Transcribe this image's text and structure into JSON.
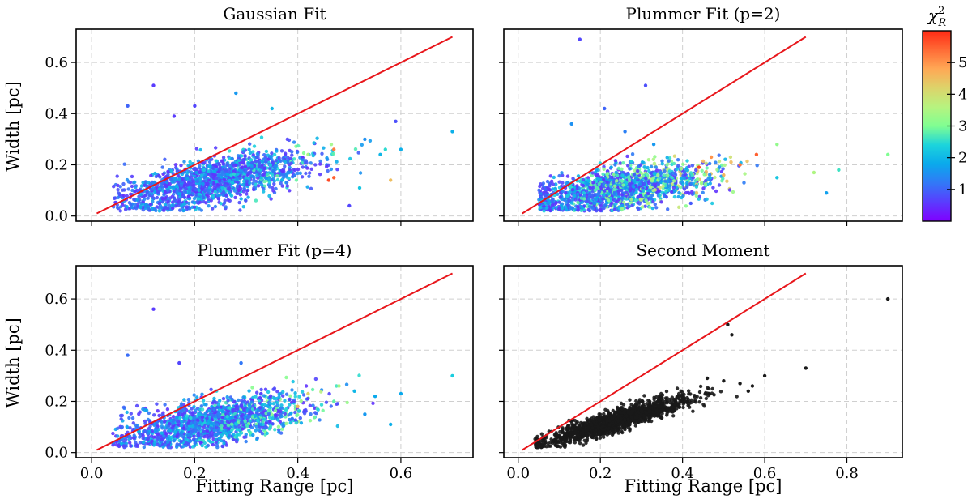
{
  "chart_data": [
    {
      "id": "gaussian",
      "type": "scatter",
      "title": "Gaussian Fit",
      "xlabel": "",
      "ylabel": "Width [pc]",
      "xlim": [
        -0.03,
        0.74
      ],
      "ylim": [
        -0.02,
        0.73
      ],
      "xticks": [
        0.0,
        0.2,
        0.4,
        0.6
      ],
      "xtick_labels": [],
      "yticks": [
        0.0,
        0.2,
        0.4,
        0.6
      ],
      "ytick_labels": [
        "0.0",
        "0.2",
        "0.4",
        "0.6"
      ],
      "grid": true,
      "color_mode": "chi2",
      "reference_line": {
        "x": [
          0.01,
          0.7
        ],
        "y": [
          0.01,
          0.7
        ],
        "color": "#e8161b"
      },
      "cloud": {
        "n": 1500,
        "seed": 11,
        "x_mean": 0.24,
        "x_sd": 0.09,
        "x_min": 0.04,
        "x_max": 0.55,
        "slope": 0.42,
        "intercept": 0.035,
        "y_sd": 0.045,
        "y_min": 0.02,
        "chi_base": 0.5,
        "chi_scale": 2.0
      },
      "outliers": [
        {
          "x": 0.12,
          "y": 0.51,
          "chi2": 0.6
        },
        {
          "x": 0.07,
          "y": 0.43,
          "chi2": 1.0
        },
        {
          "x": 0.2,
          "y": 0.43,
          "chi2": 0.7
        },
        {
          "x": 0.16,
          "y": 0.39,
          "chi2": 0.6
        },
        {
          "x": 0.28,
          "y": 0.48,
          "chi2": 1.6
        },
        {
          "x": 0.35,
          "y": 0.42,
          "chi2": 2.0
        },
        {
          "x": 0.59,
          "y": 0.37,
          "chi2": 0.8
        },
        {
          "x": 0.7,
          "y": 0.33,
          "chi2": 1.9
        },
        {
          "x": 0.53,
          "y": 0.3,
          "chi2": 1.5
        },
        {
          "x": 0.57,
          "y": 0.26,
          "chi2": 2.5
        },
        {
          "x": 0.58,
          "y": 0.14,
          "chi2": 4.5
        },
        {
          "x": 0.6,
          "y": 0.26,
          "chi2": 1.9
        },
        {
          "x": 0.5,
          "y": 0.04,
          "chi2": 0.7
        },
        {
          "x": 0.46,
          "y": 0.14,
          "chi2": 5.7
        },
        {
          "x": 0.47,
          "y": 0.26,
          "chi2": 5.2
        },
        {
          "x": 0.42,
          "y": 0.24,
          "chi2": 3.5
        },
        {
          "x": 0.52,
          "y": 0.11,
          "chi2": 2.2
        },
        {
          "x": 0.47,
          "y": 0.15,
          "chi2": 5.5
        },
        {
          "x": 0.56,
          "y": 0.24,
          "chi2": 2.0
        }
      ]
    },
    {
      "id": "plummer2",
      "type": "scatter",
      "title": "Plummer Fit (p=2)",
      "xlabel": "",
      "ylabel": "",
      "xlim": [
        -0.035,
        0.935
      ],
      "ylim": [
        -0.02,
        0.73
      ],
      "xticks": [
        0.0,
        0.2,
        0.4,
        0.6,
        0.8
      ],
      "xtick_labels": [],
      "yticks": [
        0.0,
        0.2,
        0.4,
        0.6
      ],
      "ytick_labels": [],
      "grid": true,
      "color_mode": "chi2",
      "reference_line": {
        "x": [
          0.01,
          0.7
        ],
        "y": [
          0.01,
          0.7
        ],
        "color": "#e8161b"
      },
      "cloud": {
        "n": 1500,
        "seed": 23,
        "x_mean": 0.25,
        "x_sd": 0.11,
        "x_min": 0.05,
        "x_max": 0.68,
        "slope": 0.22,
        "intercept": 0.05,
        "y_sd": 0.04,
        "y_min": 0.02,
        "chi_base": 0.5,
        "chi_scale": 3.0
      },
      "outliers": [
        {
          "x": 0.15,
          "y": 0.69,
          "chi2": 0.7
        },
        {
          "x": 0.31,
          "y": 0.51,
          "chi2": 0.8
        },
        {
          "x": 0.21,
          "y": 0.42,
          "chi2": 1.0
        },
        {
          "x": 0.13,
          "y": 0.36,
          "chi2": 1.5
        },
        {
          "x": 0.26,
          "y": 0.33,
          "chi2": 1.3
        },
        {
          "x": 0.33,
          "y": 0.28,
          "chi2": 1.6
        },
        {
          "x": 0.9,
          "y": 0.24,
          "chi2": 3.0
        },
        {
          "x": 0.78,
          "y": 0.18,
          "chi2": 2.6
        },
        {
          "x": 0.75,
          "y": 0.09,
          "chi2": 1.7
        },
        {
          "x": 0.63,
          "y": 0.15,
          "chi2": 2.2
        },
        {
          "x": 0.63,
          "y": 0.28,
          "chi2": 3.2
        },
        {
          "x": 0.72,
          "y": 0.17,
          "chi2": 3.5
        },
        {
          "x": 0.47,
          "y": 0.23,
          "chi2": 5.0
        },
        {
          "x": 0.54,
          "y": 0.2,
          "chi2": 5.3
        },
        {
          "x": 0.58,
          "y": 0.24,
          "chi2": 5.5
        },
        {
          "x": 0.42,
          "y": 0.05,
          "chi2": 0.9
        },
        {
          "x": 0.5,
          "y": 0.16,
          "chi2": 4.6
        },
        {
          "x": 0.44,
          "y": 0.19,
          "chi2": 5.8
        }
      ]
    },
    {
      "id": "plummer4",
      "type": "scatter",
      "title": "Plummer Fit (p=4)",
      "xlabel": "Fitting Range [pc]",
      "ylabel": "Width [pc]",
      "xlim": [
        -0.03,
        0.74
      ],
      "ylim": [
        -0.02,
        0.73
      ],
      "xticks": [
        0.0,
        0.2,
        0.4,
        0.6
      ],
      "xtick_labels": [
        "0.0",
        "0.2",
        "0.4",
        "0.6"
      ],
      "yticks": [
        0.0,
        0.2,
        0.4,
        0.6
      ],
      "ytick_labels": [
        "0.0",
        "0.2",
        "0.4",
        "0.6"
      ],
      "grid": true,
      "color_mode": "chi2",
      "reference_line": {
        "x": [
          0.01,
          0.7
        ],
        "y": [
          0.01,
          0.7
        ],
        "color": "#e8161b"
      },
      "cloud": {
        "n": 1500,
        "seed": 37,
        "x_mean": 0.24,
        "x_sd": 0.09,
        "x_min": 0.04,
        "x_max": 0.55,
        "slope": 0.35,
        "intercept": 0.035,
        "y_sd": 0.045,
        "y_min": 0.02,
        "chi_base": 0.5,
        "chi_scale": 2.3
      },
      "outliers": [
        {
          "x": 0.12,
          "y": 0.56,
          "chi2": 0.6
        },
        {
          "x": 0.07,
          "y": 0.38,
          "chi2": 1.1
        },
        {
          "x": 0.17,
          "y": 0.35,
          "chi2": 0.7
        },
        {
          "x": 0.29,
          "y": 0.35,
          "chi2": 1.2
        },
        {
          "x": 0.7,
          "y": 0.3,
          "chi2": 2.3
        },
        {
          "x": 0.58,
          "y": 0.11,
          "chi2": 1.9
        },
        {
          "x": 0.55,
          "y": 0.22,
          "chi2": 1.8
        },
        {
          "x": 0.48,
          "y": 0.26,
          "chi2": 3.4
        },
        {
          "x": 0.51,
          "y": 0.24,
          "chi2": 2.0
        },
        {
          "x": 0.47,
          "y": 0.2,
          "chi2": 2.8
        },
        {
          "x": 0.6,
          "y": 0.23,
          "chi2": 1.8
        },
        {
          "x": 0.42,
          "y": 0.23,
          "chi2": 4.2
        },
        {
          "x": 0.4,
          "y": 0.18,
          "chi2": 4.6
        },
        {
          "x": 0.53,
          "y": 0.15,
          "chi2": 1.6
        }
      ]
    },
    {
      "id": "moment",
      "type": "scatter",
      "title": "Second Moment",
      "xlabel": "Fitting Range [pc]",
      "ylabel": "",
      "xlim": [
        -0.035,
        0.935
      ],
      "ylim": [
        -0.02,
        0.73
      ],
      "xticks": [
        0.0,
        0.2,
        0.4,
        0.6,
        0.8
      ],
      "xtick_labels": [
        "0.0",
        "0.2",
        "0.4",
        "0.6",
        "0.8"
      ],
      "yticks": [
        0.0,
        0.2,
        0.4,
        0.6
      ],
      "ytick_labels": [],
      "grid": true,
      "color_mode": "black",
      "point_color": "#1a1a1a",
      "reference_line": {
        "x": [
          0.01,
          0.7
        ],
        "y": [
          0.01,
          0.7
        ],
        "color": "#e8161b"
      },
      "cloud": {
        "n": 1500,
        "seed": 53,
        "x_mean": 0.24,
        "x_sd": 0.09,
        "x_min": 0.04,
        "x_max": 0.55,
        "slope": 0.48,
        "intercept": 0.01,
        "y_sd": 0.02,
        "y_min": 0.02,
        "chi_base": 0,
        "chi_scale": 0
      },
      "outliers": [
        {
          "x": 0.9,
          "y": 0.6
        },
        {
          "x": 0.7,
          "y": 0.33
        },
        {
          "x": 0.6,
          "y": 0.3
        },
        {
          "x": 0.51,
          "y": 0.5
        },
        {
          "x": 0.52,
          "y": 0.46
        },
        {
          "x": 0.57,
          "y": 0.26
        },
        {
          "x": 0.54,
          "y": 0.27
        },
        {
          "x": 0.56,
          "y": 0.24
        },
        {
          "x": 0.5,
          "y": 0.28
        },
        {
          "x": 0.46,
          "y": 0.29
        }
      ]
    }
  ],
  "colorbar": {
    "title": "χ",
    "title_sup": "2",
    "title_sub": "R",
    "range": [
      0,
      6.0
    ],
    "ticks": [
      1,
      2,
      3,
      4,
      5
    ],
    "tick_labels": [
      "1",
      "2",
      "3",
      "4",
      "5"
    ],
    "colormap": "rainbow"
  }
}
